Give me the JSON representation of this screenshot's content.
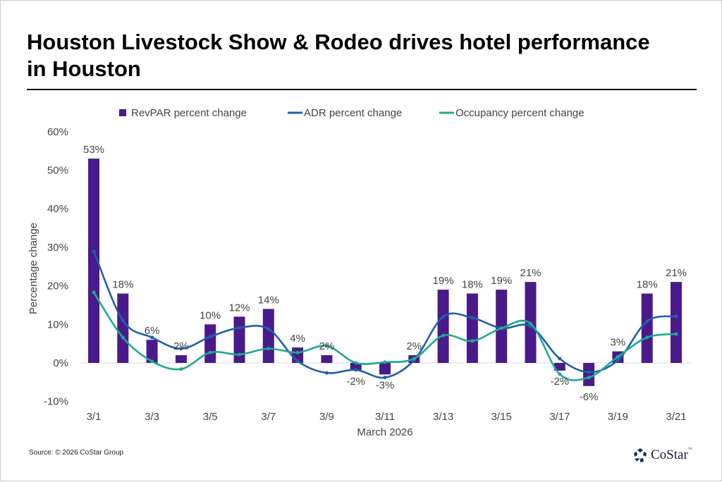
{
  "title": "Houston Livestock Show & Rodeo drives hotel performance in Houston",
  "source": "Source: © 2026 CoStar Group",
  "logo": {
    "text": "CoStar",
    "tm": "™"
  },
  "colors": {
    "revpar": "#4a1a8a",
    "adr": "#1f5fae",
    "occupancy": "#1faa8f",
    "grid": "#d9d9d9",
    "text": "#444444"
  },
  "chart_data": {
    "type": "bar",
    "xlabel": "March 2026",
    "ylabel": "Percentage change",
    "ylim": [
      -10,
      60
    ],
    "yticks": [
      "-10%",
      "0%",
      "10%",
      "20%",
      "30%",
      "40%",
      "50%",
      "60%"
    ],
    "ytick_values": [
      -10,
      0,
      10,
      20,
      30,
      40,
      50,
      60
    ],
    "categories": [
      "3/1",
      "3/2",
      "3/3",
      "3/4",
      "3/5",
      "3/6",
      "3/7",
      "3/8",
      "3/9",
      "3/10",
      "3/11",
      "3/12",
      "3/13",
      "3/14",
      "3/15",
      "3/16",
      "3/17",
      "3/18",
      "3/19",
      "3/20",
      "3/21"
    ],
    "xtick_labels": [
      "3/1",
      "3/3",
      "3/5",
      "3/7",
      "3/9",
      "3/11",
      "3/13",
      "3/15",
      "3/17",
      "3/19",
      "3/21"
    ],
    "legend_position": "top",
    "grid": false,
    "series": [
      {
        "name": "RevPAR percent change",
        "type": "bar",
        "values": [
          53,
          18,
          6,
          2,
          10,
          12,
          14,
          4,
          2,
          -2,
          -3,
          2,
          19,
          18,
          19,
          21,
          -2,
          -6,
          3,
          18,
          21
        ],
        "labels": [
          "53%",
          "18%",
          "6%",
          "2%",
          "10%",
          "12%",
          "14%",
          "4%",
          "2%",
          "-2%",
          "-3%",
          "2%",
          "19%",
          "18%",
          "19%",
          "21%",
          "-2%",
          "-6%",
          "3%",
          "18%",
          "21%"
        ]
      },
      {
        "name": "ADR percent change",
        "type": "line",
        "values": [
          29,
          11,
          6.6,
          3.7,
          6.8,
          9.1,
          8.8,
          0.5,
          -2.6,
          -1.8,
          -3.8,
          0.7,
          12,
          11.7,
          9,
          9.5,
          1.1,
          -2.4,
          0.7,
          10.8,
          12.1
        ]
      },
      {
        "name": "Occupancy percent change",
        "type": "line",
        "values": [
          18.3,
          6.6,
          0.4,
          -1.6,
          2.7,
          2.2,
          3.7,
          2.7,
          4.4,
          0,
          0.2,
          1.1,
          7.1,
          5.7,
          9,
          10.2,
          -2.9,
          -3.8,
          1.6,
          6.6,
          7.5
        ]
      }
    ]
  }
}
